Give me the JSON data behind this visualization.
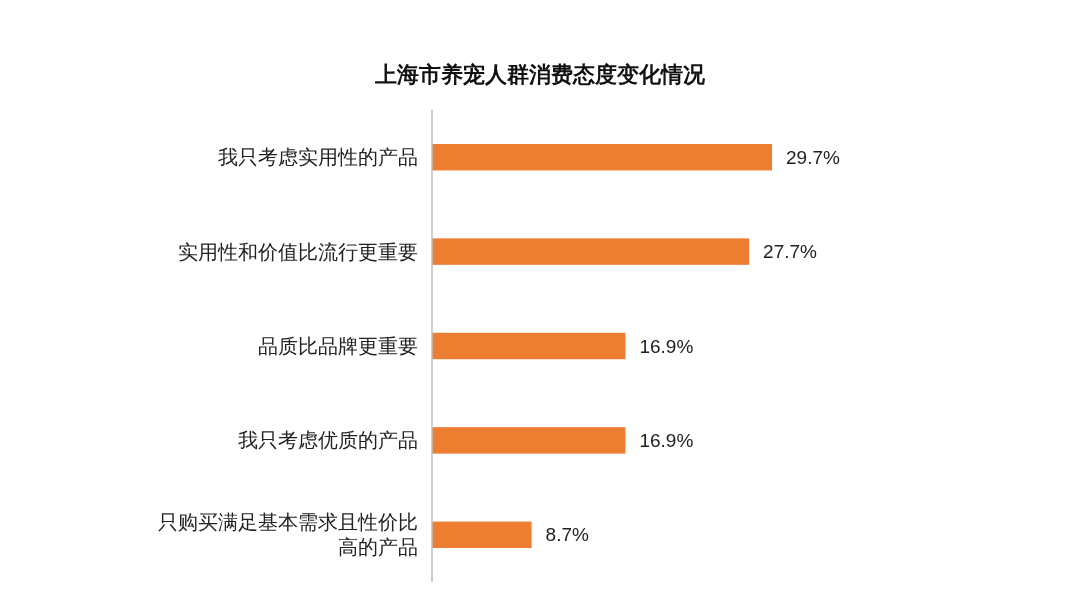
{
  "chart_data": {
    "type": "bar",
    "orientation": "horizontal",
    "title": "上海市养宠人群消费态度变化情况",
    "categories": [
      "我只考虑实用性的产品",
      "实用性和价值比流行更重要",
      "品质比品牌更重要",
      "我只考虑优质的产品",
      "只购买满足基本需求且性价比高的产品"
    ],
    "values": [
      29.7,
      27.7,
      16.9,
      16.9,
      8.7
    ],
    "value_labels": [
      "29.7%",
      "27.7%",
      "16.9%",
      "16.9%",
      "8.7%"
    ],
    "color": "#ed7d31"
  }
}
